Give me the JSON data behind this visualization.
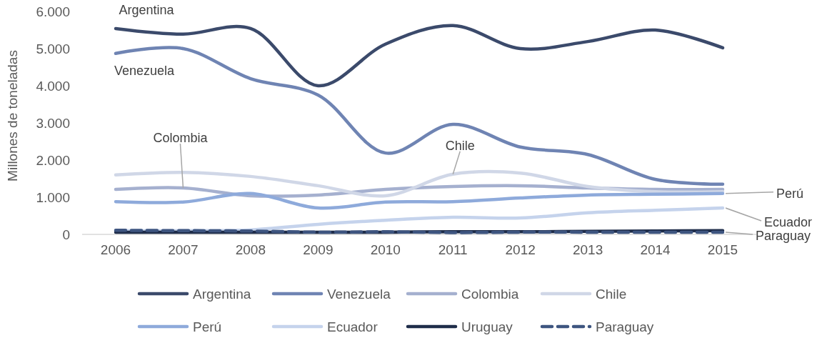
{
  "chart_data": {
    "type": "line",
    "ylabel": "Millones de toneladas",
    "categories": [
      "2006",
      "2007",
      "2008",
      "2009",
      "2010",
      "2011",
      "2012",
      "2013",
      "2014",
      "2015"
    ],
    "ylim": [
      0,
      6000
    ],
    "yticks": [
      {
        "value": 0,
        "label": "0"
      },
      {
        "value": 1000,
        "label": "1.000"
      },
      {
        "value": 2000,
        "label": "2.000"
      },
      {
        "value": 3000,
        "label": "3.000"
      },
      {
        "value": 4000,
        "label": "4.000"
      },
      {
        "value": 5000,
        "label": "5.000"
      },
      {
        "value": 6000,
        "label": "6.000"
      }
    ],
    "grid": false,
    "legend": "bottom",
    "marker": "none",
    "series": [
      {
        "name": "Argentina",
        "color": "#3b4a6b",
        "line_style": "solid",
        "values": [
          5540,
          5390,
          5540,
          4000,
          5120,
          5620,
          5000,
          5190,
          5500,
          5020
        ]
      },
      {
        "name": "Venezuela",
        "color": "#6f84b3",
        "line_style": "solid",
        "values": [
          4870,
          5000,
          4190,
          3750,
          2190,
          2960,
          2350,
          2150,
          1480,
          1350
        ]
      },
      {
        "name": "Colombia",
        "color": "#a5b0cf",
        "line_style": "solid",
        "values": [
          1210,
          1250,
          1040,
          1060,
          1210,
          1290,
          1310,
          1250,
          1210,
          1210
        ]
      },
      {
        "name": "Chile",
        "color": "#d0d7e7",
        "line_style": "solid",
        "values": [
          1600,
          1670,
          1560,
          1310,
          1040,
          1620,
          1650,
          1290,
          1150,
          1150
        ]
      },
      {
        "name": "Perú",
        "color": "#8eaadb",
        "line_style": "solid",
        "values": [
          880,
          870,
          1100,
          710,
          870,
          880,
          980,
          1060,
          1080,
          1100
        ]
      },
      {
        "name": "Ecuador",
        "color": "#c5d3ec",
        "line_style": "solid",
        "values": [
          100,
          100,
          120,
          270,
          380,
          460,
          440,
          580,
          650,
          710
        ]
      },
      {
        "name": "Uruguay",
        "color": "#1f2d4a",
        "line_style": "solid",
        "values": [
          60,
          60,
          60,
          60,
          60,
          70,
          70,
          80,
          90,
          100
        ]
      },
      {
        "name": "Paraguay",
        "color": "#3e5580",
        "line_style": "dashed",
        "values": [
          110,
          100,
          90,
          60,
          70,
          50,
          60,
          60,
          60,
          60
        ]
      }
    ],
    "annotations": [
      {
        "text": "Argentina",
        "x": "2006",
        "y": 5540
      },
      {
        "text": "Venezuela",
        "x": "2006",
        "y": 4870
      },
      {
        "text": "Colombia",
        "x": "2007",
        "y": 1250
      },
      {
        "text": "Chile",
        "x": "2011",
        "y": 1620
      },
      {
        "text": "Perú",
        "x": "2015",
        "y": 1100
      },
      {
        "text": "Ecuador",
        "x": "2015",
        "y": 710
      },
      {
        "text": "Paraguay",
        "x": "2015",
        "y": 60
      }
    ]
  }
}
